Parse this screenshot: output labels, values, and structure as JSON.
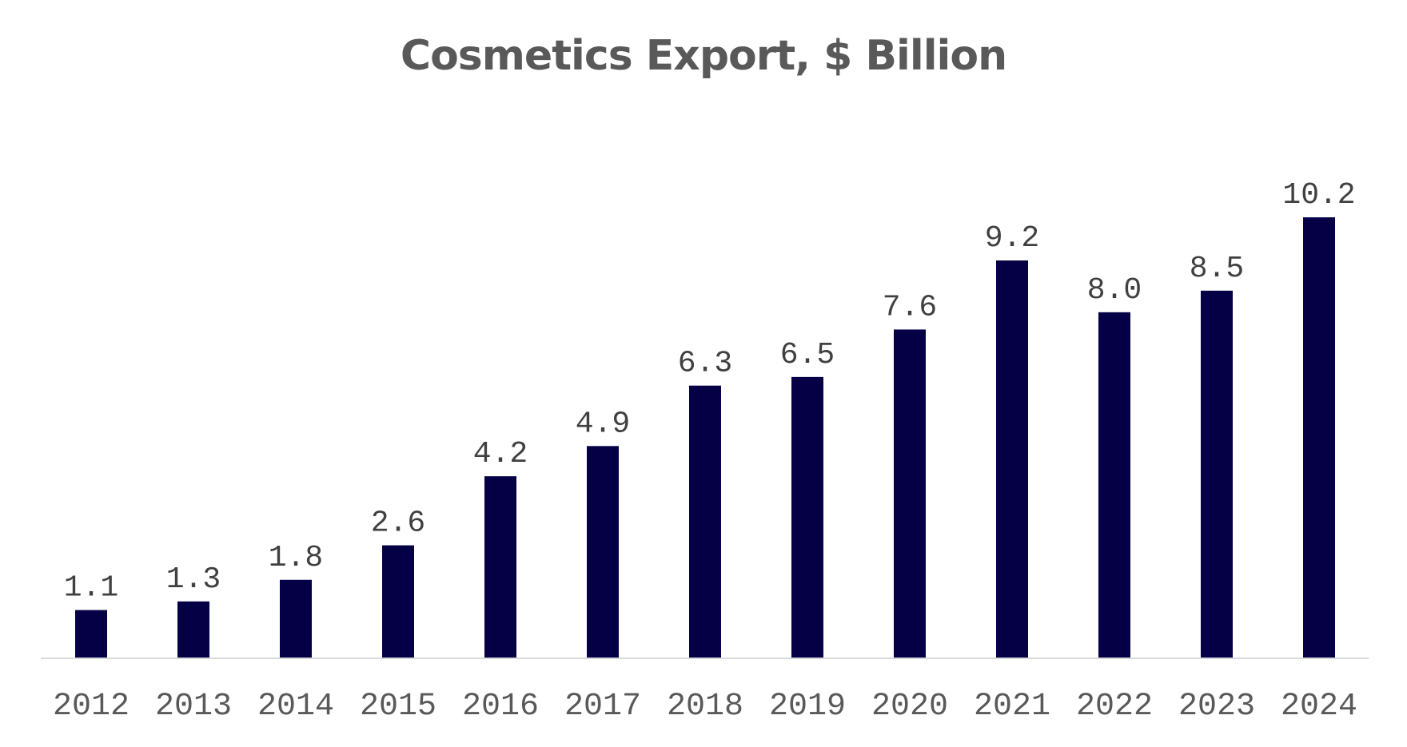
{
  "chart_data": {
    "type": "bar",
    "title": "Cosmetics Export, $ Billion",
    "xlabel": "",
    "ylabel": "",
    "categories": [
      "2012",
      "2013",
      "2014",
      "2015",
      "2016",
      "2017",
      "2018",
      "2019",
      "2020",
      "2021",
      "2022",
      "2023",
      "2024"
    ],
    "values": [
      1.1,
      1.3,
      1.8,
      2.6,
      4.2,
      4.9,
      6.3,
      6.5,
      7.6,
      9.2,
      8.0,
      8.5,
      10.2
    ],
    "value_labels": [
      "1.1",
      "1.3",
      "1.8",
      "2.6",
      "4.2",
      "4.9",
      "6.3",
      "6.5",
      "7.6",
      "9.2",
      "8.0",
      "8.5",
      "10.2"
    ],
    "ylim": [
      0,
      10.2
    ],
    "grid": false,
    "legend": "none",
    "colors": {
      "bar": "#050046",
      "axis": "#d9d9d9",
      "text": "#595959"
    }
  }
}
